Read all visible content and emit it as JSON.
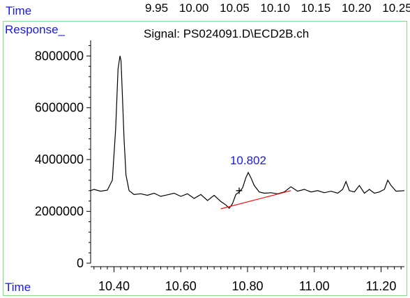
{
  "top_axis": {
    "label": "Time",
    "ticks": [
      "9.95",
      "10.00",
      "10.05",
      "10.10",
      "10.15",
      "10.20",
      "10.25"
    ]
  },
  "colors": {
    "frame": "#7ee07e",
    "label_blue": "#1a1adb",
    "trace": "#000000",
    "baseline": "#e01515"
  },
  "chart_data": {
    "type": "line",
    "title": "Signal: PS024091.D\\ECD2B.ch",
    "ylabel": "Response_",
    "xlabel": "Time",
    "xlim": [
      10.33,
      11.27
    ],
    "ylim": [
      0,
      8600000
    ],
    "x_ticks": [
      10.4,
      10.6,
      10.8,
      11.0,
      11.2
    ],
    "x_tick_labels": [
      "10.40",
      "10.60",
      "10.80",
      "11.00",
      "11.20"
    ],
    "y_ticks": [
      0,
      2000000,
      4000000,
      6000000,
      8000000
    ],
    "y_tick_labels": [
      "0",
      "2000000",
      "4000000",
      "6000000",
      "8000000"
    ],
    "grid": false,
    "series": [
      {
        "x": [
          10.33,
          10.34,
          10.36,
          10.38,
          10.395,
          10.405,
          10.412,
          10.418,
          10.421,
          10.425,
          10.43,
          10.436,
          10.445,
          10.46,
          10.48,
          10.5,
          10.52,
          10.54,
          10.56,
          10.58,
          10.6,
          10.62,
          10.64,
          10.66,
          10.68,
          10.7,
          10.72,
          10.735,
          10.745,
          10.755,
          10.765,
          10.775,
          10.785,
          10.795,
          10.802,
          10.81,
          10.82,
          10.835,
          10.85,
          10.87,
          10.89,
          10.91,
          10.93,
          10.95,
          10.97,
          10.99,
          11.01,
          11.03,
          11.05,
          11.07,
          11.085,
          11.095,
          11.105,
          11.12,
          11.135,
          11.15,
          11.165,
          11.18,
          11.195,
          11.21,
          11.22,
          11.23,
          11.245,
          11.27
        ],
        "y": [
          2800000,
          2850000,
          2780000,
          2820000,
          3200000,
          5200000,
          7500000,
          8000000,
          7800000,
          6500000,
          4800000,
          3400000,
          2800000,
          2650000,
          2680000,
          2620000,
          2700000,
          2580000,
          2640000,
          2700000,
          2580000,
          2680000,
          2500000,
          2650000,
          2420000,
          2620000,
          2380000,
          2250000,
          2120000,
          2300000,
          2650000,
          2750000,
          2900000,
          3300000,
          3500000,
          3300000,
          3000000,
          2750000,
          2700000,
          2720000,
          2680000,
          2750000,
          2950000,
          2780000,
          2850000,
          2750000,
          2800000,
          2720000,
          2780000,
          2700000,
          2850000,
          3150000,
          2800000,
          2750000,
          3000000,
          2700000,
          2850000,
          2700000,
          2750000,
          2850000,
          3200000,
          3000000,
          2780000,
          2800000
        ]
      }
    ],
    "baseline_segment": {
      "x": [
        10.72,
        10.93
      ],
      "y": [
        2100000,
        2800000
      ]
    },
    "annotations": [
      {
        "text": "10.802",
        "x": 10.802,
        "y": 3500000
      }
    ],
    "marker": {
      "symbol": "+",
      "x": 10.775,
      "y": 2820000
    }
  }
}
